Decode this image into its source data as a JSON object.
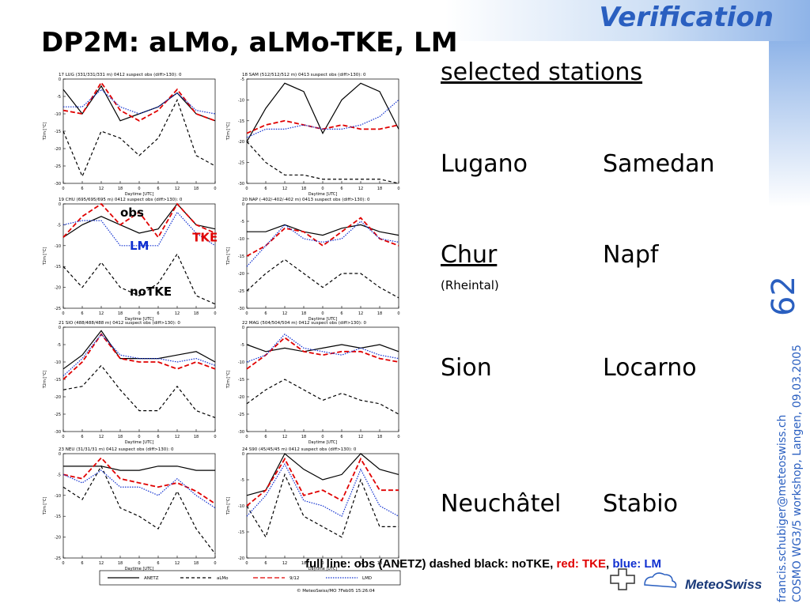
{
  "header": {
    "label": "Verification",
    "title": "DP2M: aLMo, aLMo-TKE, LM"
  },
  "stations": {
    "heading": "selected stations",
    "rows": [
      [
        "Lugano",
        "Samedan"
      ],
      [
        "Chur",
        "Napf"
      ],
      [
        "Sion",
        "Locarno"
      ],
      [
        "Neuchâtel",
        "Stabio"
      ]
    ],
    "note": "(Rheintal)"
  },
  "slide_number": "62",
  "side_text": [
    "francis.schubiger@meteoswiss.ch",
    "COSMO WG3/5 workshop, Langen, 09.03.2005"
  ],
  "caption": [
    {
      "text": "full line: obs (ANETZ) dashed black: noTKE, ",
      "color": "#000000"
    },
    {
      "text": "red: TKE",
      "color": "#e00000"
    },
    {
      "text": ", ",
      "color": "#000000"
    },
    {
      "text": "blue: LM",
      "color": "#1030d0"
    }
  ],
  "logo": "MeteoSwiss",
  "plot_common": {
    "x_label": "Daytime [UTC]",
    "y_label": "T2m [°C]",
    "categories": [
      "0",
      "6",
      "12",
      "18",
      "0",
      "6",
      "12",
      "18",
      "0"
    ]
  },
  "legend": [
    {
      "name": "ANETZ",
      "color": "#000000",
      "dash": "none"
    },
    {
      "name": "aLMo",
      "color": "#000000",
      "dash": "4 3"
    },
    {
      "name": "9/12",
      "color": "#e00000",
      "dash": "6 3"
    },
    {
      "name": "LMD",
      "color": "#1030d0",
      "dash": "1.5 1.5"
    }
  ],
  "footer": "© MeteoSwiss/MO 7Feb05 15:26:04",
  "panels": [
    {
      "title": "17 LUG (331/331/331 m) 0412 suspect obs (diff>130): 0",
      "ylim": [
        -30,
        0
      ],
      "yticks": [
        0,
        -5,
        -10,
        -15,
        -20,
        -25,
        -30
      ],
      "series": [
        [
          -3,
          -10,
          -2,
          -12,
          -10,
          -8,
          -4,
          -10,
          -12
        ],
        [
          -15,
          -28,
          -15,
          -17,
          -22,
          -17,
          -6,
          -22,
          -25
        ],
        [
          -9,
          -10,
          -1,
          -9,
          -12,
          -9,
          -3,
          -10,
          -12
        ],
        [
          -8,
          -8,
          -3,
          -8,
          -10,
          -8,
          -4,
          -9,
          -10
        ]
      ]
    },
    {
      "title": "18 SAM (512/512/512 m) 0413 suspect obs (diff>130): 0",
      "ylim": [
        -30,
        -5
      ],
      "yticks": [
        -5,
        -10,
        -15,
        -20,
        -25,
        -30
      ],
      "series": [
        [
          -20,
          -12,
          -6,
          -8,
          -18,
          -10,
          -6,
          -8,
          -17
        ],
        [
          -20,
          -25,
          -28,
          -28,
          -29,
          -29,
          -29,
          -29,
          -30
        ],
        [
          -18,
          -16,
          -15,
          -16,
          -17,
          -16,
          -17,
          -17,
          -16
        ],
        [
          -19,
          -17,
          -17,
          -16,
          -17,
          -17,
          -16,
          -14,
          -10
        ]
      ]
    },
    {
      "title": "19 CHU (695/695/695 m) 0412 suspect obs (diff>130): 0",
      "ylim": [
        -25,
        0
      ],
      "yticks": [
        0,
        -5,
        -10,
        -15,
        -20,
        -25
      ],
      "series": [
        [
          -8,
          -5,
          -3,
          -5,
          -7,
          -6,
          0,
          -5,
          -6
        ],
        [
          -15,
          -20,
          -14,
          -20,
          -22,
          -19,
          -12,
          -22,
          -24
        ],
        [
          -8,
          -3,
          0,
          -5,
          -2,
          -8,
          0,
          -5,
          -7
        ],
        [
          -5,
          -4,
          -4,
          -10,
          -10,
          -10,
          -2,
          -7,
          -10
        ]
      ],
      "annotations": [
        {
          "text": "obs",
          "color": "#000000",
          "x": 3,
          "y": -3
        },
        {
          "text": "LM",
          "color": "#1030d0",
          "x": 3.5,
          "y": -11
        },
        {
          "text": "TKE",
          "color": "#e00000",
          "x": 6.8,
          "y": -9
        },
        {
          "text": "noTKE",
          "color": "#000000",
          "x": 3.5,
          "y": -22
        }
      ]
    },
    {
      "title": "20 NAP (-402/-402/-402 m) 0413 suspect obs (diff>130): 0",
      "ylim": [
        -30,
        0
      ],
      "yticks": [
        0,
        -5,
        -10,
        -15,
        -20,
        -25,
        -30
      ],
      "series": [
        [
          -8,
          -8,
          -6,
          -8,
          -9,
          -7,
          -6,
          -8,
          -9
        ],
        [
          -25,
          -20,
          -16,
          -20,
          -24,
          -20,
          -20,
          -24,
          -27
        ],
        [
          -15,
          -12,
          -7,
          -8,
          -12,
          -8,
          -4,
          -10,
          -12
        ],
        [
          -18,
          -12,
          -6,
          -10,
          -11,
          -10,
          -5,
          -10,
          -11
        ]
      ]
    },
    {
      "title": "21 SIO (488/488/488 m) 0412 suspect obs (diff>130): 0",
      "ylim": [
        -30,
        0
      ],
      "yticks": [
        0,
        -5,
        -10,
        -15,
        -20,
        -25,
        -30
      ],
      "series": [
        [
          -12,
          -8,
          -1,
          -9,
          -9,
          -9,
          -8,
          -7,
          -10
        ],
        [
          -18,
          -17,
          -11,
          -18,
          -24,
          -24,
          -17,
          -24,
          -26
        ],
        [
          -15,
          -10,
          -2,
          -9,
          -10,
          -10,
          -12,
          -10,
          -12
        ],
        [
          -14,
          -9,
          -2,
          -8,
          -9,
          -9,
          -10,
          -9,
          -11
        ]
      ]
    },
    {
      "title": "22 MAG (504/504/504 m) 0412 suspect obs (diff>130): 0",
      "ylim": [
        -30,
        0
      ],
      "yticks": [
        0,
        -5,
        -10,
        -15,
        -20,
        -25,
        -30
      ],
      "series": [
        [
          -5,
          -7,
          -6,
          -7,
          -6,
          -5,
          -6,
          -5,
          -7
        ],
        [
          -22,
          -18,
          -15,
          -18,
          -21,
          -19,
          -21,
          -22,
          -25
        ],
        [
          -12,
          -8,
          -3,
          -7,
          -8,
          -7,
          -7,
          -9,
          -10
        ],
        [
          -10,
          -8,
          -2,
          -6,
          -7,
          -8,
          -6,
          -8,
          -9
        ]
      ]
    },
    {
      "title": "23 NEU (31/31/31 m) 0412 suspect obs (diff>130): 0",
      "ylim": [
        -25,
        0
      ],
      "yticks": [
        0,
        -5,
        -10,
        -15,
        -20,
        -25
      ],
      "series": [
        [
          -3,
          -3,
          -3,
          -4,
          -4,
          -3,
          -3,
          -4,
          -4
        ],
        [
          -8,
          -11,
          -3,
          -13,
          -15,
          -18,
          -9,
          -18,
          -24
        ],
        [
          -5,
          -6,
          -1,
          -6,
          -7,
          -8,
          -7,
          -9,
          -12
        ],
        [
          -5,
          -7,
          -4,
          -8,
          -8,
          -10,
          -6,
          -10,
          -13
        ]
      ]
    },
    {
      "title": "24 S90 (45/45/45 m) 0412 suspect obs (diff>130): 0",
      "ylim": [
        -20,
        0
      ],
      "yticks": [
        0,
        -5,
        -10,
        -15,
        -20
      ],
      "series": [
        [
          -8,
          -7,
          0,
          -3,
          -5,
          -4,
          0,
          -3,
          -4
        ],
        [
          -10,
          -16,
          -4,
          -12,
          -14,
          -16,
          -5,
          -14,
          -14
        ],
        [
          -10,
          -7,
          -1,
          -8,
          -7,
          -9,
          -1,
          -7,
          -7
        ],
        [
          -12,
          -8,
          -2,
          -9,
          -10,
          -12,
          -3,
          -10,
          -12
        ]
      ]
    }
  ]
}
